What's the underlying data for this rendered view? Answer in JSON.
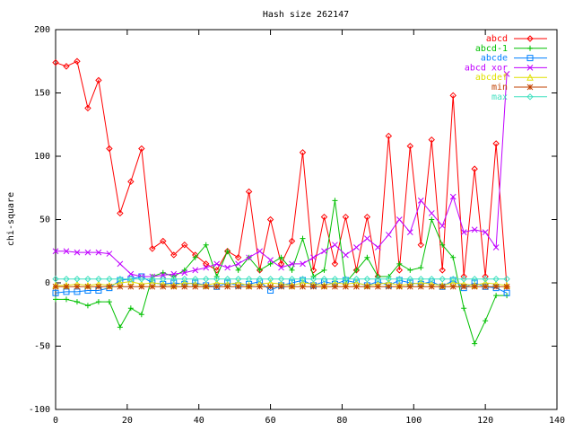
{
  "chart_data": {
    "type": "line",
    "title": "Hash size 262147",
    "y_label": "chi-square",
    "x": [
      0,
      3,
      6,
      9,
      12,
      15,
      18,
      21,
      24,
      27,
      30,
      33,
      36,
      39,
      42,
      45,
      48,
      51,
      54,
      57,
      60,
      63,
      66,
      69,
      72,
      75,
      78,
      81,
      84,
      87,
      90,
      93,
      96,
      99,
      102,
      105,
      108,
      111,
      114,
      117,
      120,
      123,
      126
    ],
    "xlim": [
      0,
      140
    ],
    "xticks": [
      0,
      20,
      40,
      60,
      80,
      100,
      120,
      140
    ],
    "ylim": [
      -100,
      200
    ],
    "yticks": [
      -100,
      -50,
      0,
      50,
      100,
      150,
      200
    ],
    "legend": "top-right",
    "series": [
      {
        "name": "abcd",
        "color": "#ff0000",
        "marker": "diamond",
        "values": [
          174,
          171,
          175,
          138,
          160,
          106,
          55,
          80,
          106,
          27,
          33,
          22,
          30,
          22,
          15,
          10,
          25,
          20,
          72,
          10,
          50,
          15,
          33,
          103,
          10,
          52,
          15,
          52,
          10,
          52,
          5,
          116,
          10,
          108,
          30,
          113,
          10,
          148,
          5,
          90,
          5,
          110,
          -3
        ]
      },
      {
        "name": "abcd-1",
        "color": "#00c000",
        "marker": "plus",
        "values": [
          -13,
          -13,
          -15,
          -18,
          -15,
          -15,
          -35,
          -20,
          -25,
          5,
          8,
          5,
          10,
          20,
          30,
          5,
          25,
          10,
          20,
          10,
          15,
          20,
          10,
          35,
          5,
          10,
          65,
          0,
          10,
          20,
          5,
          5,
          15,
          10,
          12,
          50,
          30,
          20,
          -20,
          -48,
          -30,
          -10,
          -10
        ]
      },
      {
        "name": "abcde",
        "color": "#0080ff",
        "marker": "square",
        "values": [
          -8,
          -7,
          -7,
          -6,
          -6,
          -4,
          2,
          3,
          5,
          0,
          -1,
          0,
          -1,
          0,
          -2,
          -3,
          0,
          -2,
          -1,
          1,
          -6,
          -2,
          0,
          2,
          -2,
          1,
          -1,
          2,
          0,
          -2,
          1,
          -2,
          2,
          0,
          -1,
          1,
          -3,
          2,
          -4,
          0,
          -3,
          -4,
          -8
        ]
      },
      {
        "name": "abcd xor",
        "color": "#c000ff",
        "marker": "cross",
        "values": [
          25,
          25,
          24,
          24,
          24,
          23,
          15,
          7,
          5,
          5,
          6,
          7,
          8,
          10,
          12,
          15,
          12,
          15,
          20,
          25,
          18,
          12,
          15,
          15,
          20,
          25,
          30,
          22,
          28,
          35,
          28,
          38,
          50,
          40,
          65,
          55,
          45,
          68,
          40,
          42,
          40,
          28,
          165
        ]
      },
      {
        "name": "abcdef",
        "color": "#e0e000",
        "marker": "triangle",
        "values": [
          -2,
          -2,
          -1,
          -2,
          -1,
          -2,
          0,
          1,
          -1,
          0,
          -1,
          -2,
          0,
          -1,
          -2,
          0,
          -1,
          0,
          -2,
          -1,
          0,
          -1,
          -2,
          0,
          -1,
          -2,
          0,
          -1,
          0,
          -2,
          -1,
          0,
          -2,
          -1,
          0,
          -1,
          -2,
          0,
          -1,
          -2,
          0,
          -1,
          -2
        ]
      },
      {
        "name": "min",
        "color": "#c04000",
        "marker": "star",
        "values": [
          -3,
          -3,
          -3,
          -3,
          -3,
          -3,
          -3,
          -3,
          -3,
          -3,
          -3,
          -3,
          -3,
          -3,
          -3,
          -3,
          -3,
          -3,
          -3,
          -3,
          -3,
          -3,
          -3,
          -3,
          -3,
          -3,
          -3,
          -3,
          -3,
          -3,
          -3,
          -3,
          -3,
          -3,
          -3,
          -3,
          -3,
          -3,
          -3,
          -3,
          -3,
          -3,
          -3
        ]
      },
      {
        "name": "max",
        "color": "#40e0c0",
        "marker": "diamond",
        "values": [
          3,
          3,
          3,
          3,
          3,
          3,
          3,
          3,
          3,
          3,
          3,
          3,
          3,
          3,
          3,
          3,
          3,
          3,
          3,
          3,
          3,
          3,
          3,
          3,
          3,
          3,
          3,
          3,
          3,
          3,
          3,
          3,
          3,
          3,
          3,
          3,
          3,
          3,
          3,
          3,
          3,
          3,
          3
        ]
      }
    ]
  }
}
